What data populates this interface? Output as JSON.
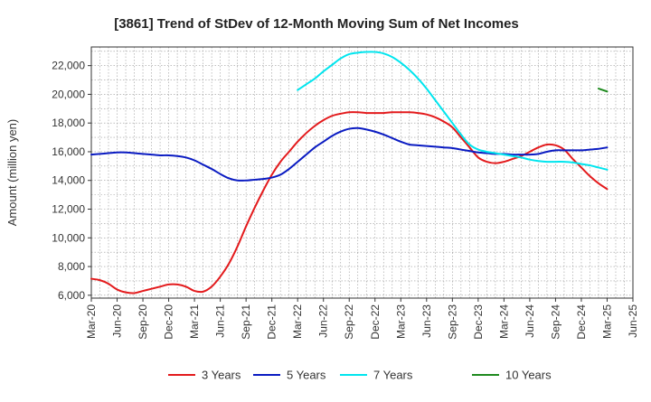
{
  "chart_data": {
    "type": "line",
    "title": "[3861]  Trend of StDev of 12-Month Moving Sum of Net Incomes",
    "xlabel": "",
    "ylabel": "Amount (million yen)",
    "ylim": [
      5800,
      23300
    ],
    "y_ticks": [
      6000,
      8000,
      10000,
      12000,
      14000,
      16000,
      18000,
      20000,
      22000
    ],
    "y_tick_labels": [
      "6,000",
      "8,000",
      "10,000",
      "12,000",
      "14,000",
      "16,000",
      "18,000",
      "20,000",
      "22,000"
    ],
    "x_tick_labels": [
      "Mar-20",
      "Jun-20",
      "Sep-20",
      "Dec-20",
      "Mar-21",
      "Jun-21",
      "Sep-21",
      "Dec-21",
      "Mar-22",
      "Jun-22",
      "Sep-22",
      "Dec-22",
      "Mar-23",
      "Jun-23",
      "Sep-23",
      "Dec-23",
      "Mar-24",
      "Jun-24",
      "Sep-24",
      "Dec-24",
      "Mar-25",
      "Jun-25"
    ],
    "grid": true,
    "legend_position": "bottom",
    "series": [
      {
        "name": "3 Years",
        "color": "#e31a1c",
        "points": [
          [
            "Mar-20",
            7150
          ],
          [
            "Apr-20",
            7050
          ],
          [
            "May-20",
            6800
          ],
          [
            "Jun-20",
            6400
          ],
          [
            "Jul-20",
            6200
          ],
          [
            "Aug-20",
            6150
          ],
          [
            "Sep-20",
            6300
          ],
          [
            "Oct-20",
            6450
          ],
          [
            "Nov-20",
            6600
          ],
          [
            "Dec-20",
            6750
          ],
          [
            "Jan-21",
            6750
          ],
          [
            "Feb-21",
            6600
          ],
          [
            "Mar-21",
            6300
          ],
          [
            "Apr-21",
            6250
          ],
          [
            "May-21",
            6600
          ],
          [
            "Jun-21",
            7300
          ],
          [
            "Jul-21",
            8200
          ],
          [
            "Aug-21",
            9400
          ],
          [
            "Sep-21",
            10800
          ],
          [
            "Oct-21",
            12100
          ],
          [
            "Nov-21",
            13300
          ],
          [
            "Dec-21",
            14400
          ],
          [
            "Jan-22",
            15300
          ],
          [
            "Feb-22",
            16000
          ],
          [
            "Mar-22",
            16700
          ],
          [
            "Apr-22",
            17300
          ],
          [
            "May-22",
            17800
          ],
          [
            "Jun-22",
            18200
          ],
          [
            "Jul-22",
            18500
          ],
          [
            "Aug-22",
            18650
          ],
          [
            "Sep-22",
            18750
          ],
          [
            "Oct-22",
            18750
          ],
          [
            "Nov-22",
            18700
          ],
          [
            "Dec-22",
            18700
          ],
          [
            "Jan-23",
            18700
          ],
          [
            "Feb-23",
            18750
          ],
          [
            "Mar-23",
            18750
          ],
          [
            "Apr-23",
            18750
          ],
          [
            "May-23",
            18700
          ],
          [
            "Jun-23",
            18600
          ],
          [
            "Jul-23",
            18400
          ],
          [
            "Aug-23",
            18100
          ],
          [
            "Sep-23",
            17700
          ],
          [
            "Oct-23",
            17000
          ],
          [
            "Nov-23",
            16300
          ],
          [
            "Dec-23",
            15600
          ],
          [
            "Jan-24",
            15300
          ],
          [
            "Feb-24",
            15200
          ],
          [
            "Mar-24",
            15300
          ],
          [
            "Apr-24",
            15500
          ],
          [
            "May-24",
            15700
          ],
          [
            "Jun-24",
            16000
          ],
          [
            "Jul-24",
            16300
          ],
          [
            "Aug-24",
            16500
          ],
          [
            "Sep-24",
            16450
          ],
          [
            "Oct-24",
            16150
          ],
          [
            "Nov-24",
            15500
          ],
          [
            "Dec-24",
            14900
          ],
          [
            "Jan-25",
            14300
          ],
          [
            "Feb-25",
            13800
          ],
          [
            "Mar-25",
            13400
          ]
        ]
      },
      {
        "name": "5 Years",
        "color": "#0a1bc2",
        "points": [
          [
            "Mar-20",
            15800
          ],
          [
            "Apr-20",
            15850
          ],
          [
            "May-20",
            15900
          ],
          [
            "Jun-20",
            15950
          ],
          [
            "Jul-20",
            15950
          ],
          [
            "Aug-20",
            15900
          ],
          [
            "Sep-20",
            15850
          ],
          [
            "Oct-20",
            15800
          ],
          [
            "Nov-20",
            15750
          ],
          [
            "Dec-20",
            15750
          ],
          [
            "Jan-21",
            15700
          ],
          [
            "Feb-21",
            15600
          ],
          [
            "Mar-21",
            15400
          ],
          [
            "Apr-21",
            15100
          ],
          [
            "May-21",
            14800
          ],
          [
            "Jun-21",
            14450
          ],
          [
            "Jul-21",
            14150
          ],
          [
            "Aug-21",
            14000
          ],
          [
            "Sep-21",
            14000
          ],
          [
            "Oct-21",
            14050
          ],
          [
            "Nov-21",
            14100
          ],
          [
            "Dec-21",
            14200
          ],
          [
            "Jan-22",
            14400
          ],
          [
            "Feb-22",
            14800
          ],
          [
            "Mar-22",
            15300
          ],
          [
            "Apr-22",
            15800
          ],
          [
            "May-22",
            16300
          ],
          [
            "Jun-22",
            16700
          ],
          [
            "Jul-22",
            17100
          ],
          [
            "Aug-22",
            17400
          ],
          [
            "Sep-22",
            17600
          ],
          [
            "Oct-22",
            17650
          ],
          [
            "Nov-22",
            17550
          ],
          [
            "Dec-22",
            17400
          ],
          [
            "Jan-23",
            17200
          ],
          [
            "Feb-23",
            16950
          ],
          [
            "Mar-23",
            16700
          ],
          [
            "Apr-23",
            16500
          ],
          [
            "May-23",
            16450
          ],
          [
            "Jun-23",
            16400
          ],
          [
            "Jul-23",
            16350
          ],
          [
            "Aug-23",
            16300
          ],
          [
            "Sep-23",
            16250
          ],
          [
            "Oct-23",
            16150
          ],
          [
            "Nov-23",
            16050
          ],
          [
            "Dec-23",
            15950
          ],
          [
            "Jan-24",
            15900
          ],
          [
            "Feb-24",
            15850
          ],
          [
            "Mar-24",
            15850
          ],
          [
            "Apr-24",
            15800
          ],
          [
            "May-24",
            15800
          ],
          [
            "Jun-24",
            15800
          ],
          [
            "Jul-24",
            15850
          ],
          [
            "Aug-24",
            16000
          ],
          [
            "Sep-24",
            16100
          ],
          [
            "Oct-24",
            16100
          ],
          [
            "Nov-24",
            16100
          ],
          [
            "Dec-24",
            16100
          ],
          [
            "Jan-25",
            16150
          ],
          [
            "Feb-25",
            16200
          ],
          [
            "Mar-25",
            16300
          ]
        ]
      },
      {
        "name": "7 Years",
        "color": "#00e5ee",
        "points": [
          [
            "Mar-22",
            20300
          ],
          [
            "Apr-22",
            20700
          ],
          [
            "May-22",
            21100
          ],
          [
            "Jun-22",
            21600
          ],
          [
            "Jul-22",
            22050
          ],
          [
            "Aug-22",
            22500
          ],
          [
            "Sep-22",
            22800
          ],
          [
            "Oct-22",
            22900
          ],
          [
            "Nov-22",
            22950
          ],
          [
            "Dec-22",
            22950
          ],
          [
            "Jan-23",
            22850
          ],
          [
            "Feb-23",
            22600
          ],
          [
            "Mar-23",
            22200
          ],
          [
            "Apr-23",
            21700
          ],
          [
            "May-23",
            21100
          ],
          [
            "Jun-23",
            20400
          ],
          [
            "Jul-23",
            19600
          ],
          [
            "Aug-23",
            18800
          ],
          [
            "Sep-23",
            18000
          ],
          [
            "Oct-23",
            17200
          ],
          [
            "Nov-23",
            16500
          ],
          [
            "Dec-23",
            16150
          ],
          [
            "Jan-24",
            16000
          ],
          [
            "Feb-24",
            15900
          ],
          [
            "Mar-24",
            15800
          ],
          [
            "Apr-24",
            15700
          ],
          [
            "May-24",
            15600
          ],
          [
            "Jun-24",
            15450
          ],
          [
            "Jul-24",
            15350
          ],
          [
            "Aug-24",
            15300
          ],
          [
            "Sep-24",
            15300
          ],
          [
            "Oct-24",
            15300
          ],
          [
            "Nov-24",
            15250
          ],
          [
            "Dec-24",
            15150
          ],
          [
            "Jan-25",
            15050
          ],
          [
            "Feb-25",
            14900
          ],
          [
            "Mar-25",
            14750
          ]
        ]
      },
      {
        "name": "10 Years",
        "color": "#1e8a1e",
        "points": [
          [
            "Feb-25",
            20400
          ],
          [
            "Mar-25",
            20200
          ]
        ]
      }
    ]
  }
}
